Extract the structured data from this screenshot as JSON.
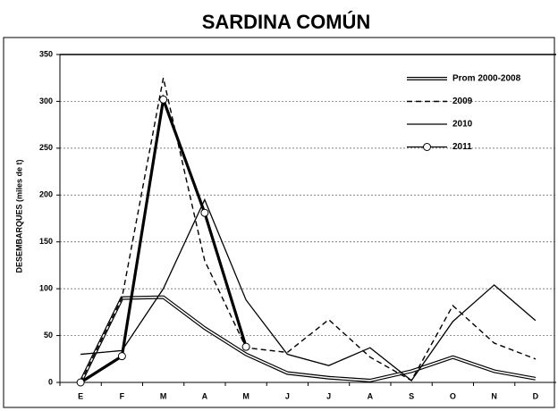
{
  "chart_data": {
    "type": "line",
    "title": "SARDINA COMÚN",
    "ylabel": "DESEMBARQUES    (miles de t)",
    "categories": [
      "E",
      "F",
      "M",
      "A",
      "M",
      "J",
      "J",
      "A",
      "S",
      "O",
      "N",
      "D"
    ],
    "ylim": [
      0,
      350
    ],
    "yticks": [
      0,
      50,
      100,
      150,
      200,
      250,
      300,
      350
    ],
    "grid": true,
    "legend": "upper right",
    "series": [
      {
        "name": "Prom 2000-2008",
        "color": "#000000",
        "style": "double",
        "values": [
          0,
          90,
          91,
          58,
          30,
          10,
          5,
          2,
          12,
          27,
          12,
          4
        ]
      },
      {
        "name": "2009",
        "color": "#000000",
        "style": "dashed",
        "values": [
          0,
          90,
          325,
          130,
          37,
          32,
          67,
          27,
          2,
          82,
          42,
          25
        ]
      },
      {
        "name": "2010",
        "color": "#000000",
        "style": "solid",
        "values": [
          30,
          34,
          100,
          195,
          88,
          30,
          18,
          37,
          2,
          65,
          104,
          66
        ]
      },
      {
        "name": "2011",
        "color": "#000000",
        "style": "marker",
        "values": [
          0,
          28,
          302,
          181,
          38,
          null,
          null,
          null,
          null,
          null,
          null,
          null
        ]
      }
    ]
  }
}
